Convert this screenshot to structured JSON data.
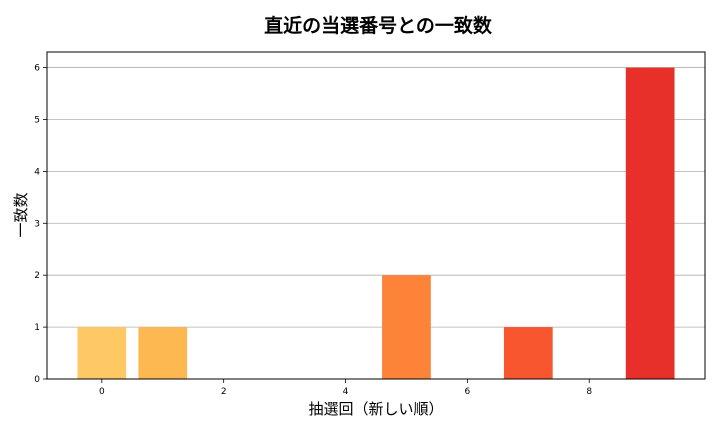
{
  "chart_data": {
    "type": "bar",
    "title": "直近の当選番号との一致数",
    "xlabel": "抽選回（新しい順）",
    "ylabel": "一致数",
    "x": [
      0,
      1,
      2,
      3,
      4,
      5,
      6,
      7,
      8,
      9
    ],
    "values": [
      1,
      1,
      0,
      0,
      0,
      2,
      0,
      1,
      0,
      6
    ],
    "bar_colors": [
      "#fec965",
      "#feb852",
      "#fea446",
      "#fe9a3e",
      "#fd8c3c",
      "#fc8338",
      "#fb6b34",
      "#f8562f",
      "#ef3b2c",
      "#e8302a"
    ],
    "xticks": [
      0,
      2,
      4,
      6,
      8
    ],
    "yticks": [
      0,
      1,
      2,
      3,
      4,
      5,
      6
    ],
    "xlim": [
      -0.9,
      9.9
    ],
    "ylim": [
      0,
      6.3
    ],
    "grid": "y"
  }
}
